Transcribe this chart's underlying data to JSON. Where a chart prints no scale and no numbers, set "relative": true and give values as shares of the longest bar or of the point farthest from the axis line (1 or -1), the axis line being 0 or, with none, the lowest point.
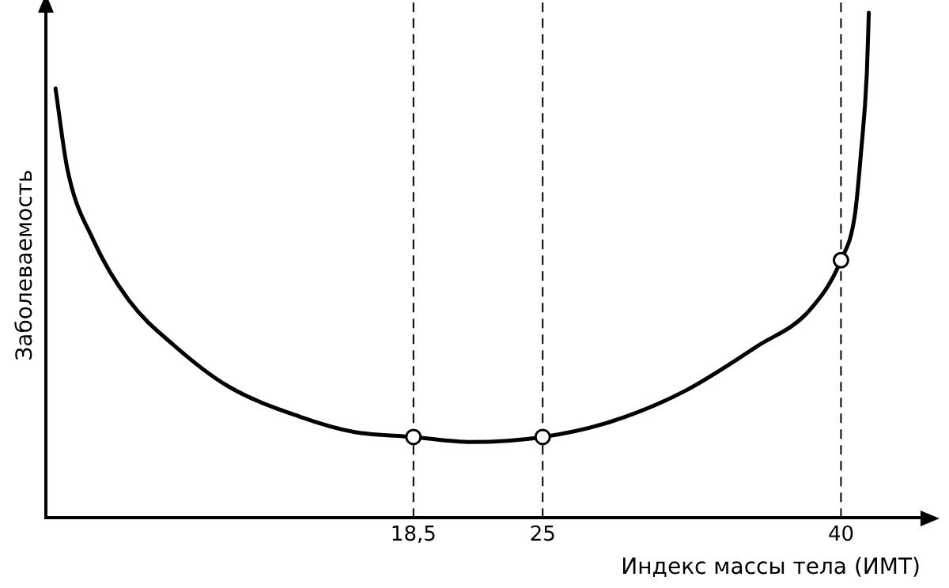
{
  "chart_data": {
    "type": "line",
    "relative": true,
    "xlabel": "Индекс массы тела (ИМТ)",
    "ylabel": "Заболеваемость",
    "xlim": [
      0,
      44
    ],
    "xticks": [
      {
        "value": 18.5,
        "label": "18,5"
      },
      25,
      40
    ],
    "grid": false,
    "legend": false,
    "tick_labels": "x",
    "ref_lines": [
      {
        "axis": "x",
        "value": 18.5,
        "color": "#000000",
        "line_style": "dashed"
      },
      {
        "axis": "x",
        "value": 25,
        "color": "#000000",
        "line_style": "dashed"
      },
      {
        "axis": "x",
        "value": 40,
        "color": "#000000",
        "line_style": "dashed"
      }
    ],
    "series": [
      {
        "color": "#000000",
        "marker": "none",
        "line_style": "solid",
        "x": [
          0.5,
          1.1,
          2.4,
          4.2,
          6.5,
          9.2,
          12.8,
          15.5,
          18.5,
          21.4,
          25,
          28.4,
          32.1,
          35.8,
          38.4,
          40,
          40.7,
          41,
          41.3,
          41.4
        ],
        "values": [
          0.85,
          0.69,
          0.55,
          0.43,
          0.34,
          0.26,
          0.2,
          0.17,
          0.16,
          0.15,
          0.16,
          0.19,
          0.25,
          0.34,
          0.41,
          0.51,
          0.6,
          0.72,
          0.88,
          1
        ]
      },
      {
        "type": "scatter",
        "color": "#000000",
        "marker": "circle",
        "x": [
          18.5,
          25,
          40
        ],
        "values": [
          0.16,
          0.16,
          0.51
        ]
      }
    ]
  }
}
